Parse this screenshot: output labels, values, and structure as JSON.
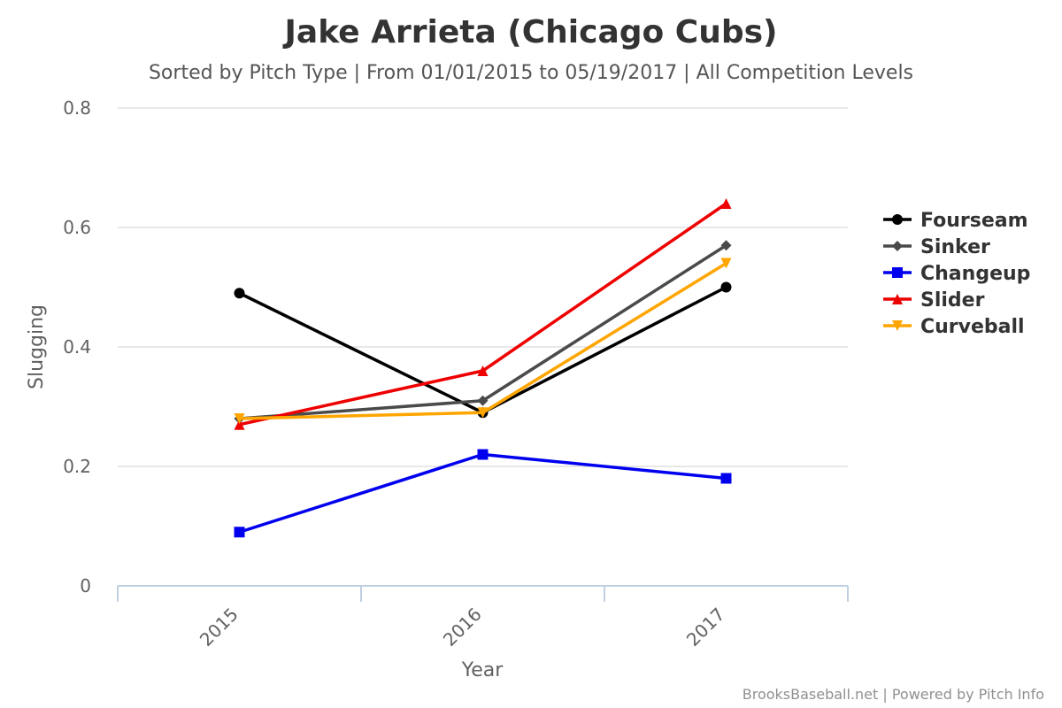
{
  "chart_data": {
    "type": "line",
    "title": "Jake Arrieta (Chicago Cubs)",
    "subtitle": "Sorted by Pitch Type | From 01/01/2015 to 05/19/2017 | All Competition Levels",
    "xlabel": "Year",
    "ylabel": "Slugging",
    "categories": [
      "2015",
      "2016",
      "2017"
    ],
    "ylim": [
      0,
      0.8
    ],
    "yticks": [
      "0",
      "0.2",
      "0.4",
      "0.6",
      "0.8"
    ],
    "grid": true,
    "legend_position": "right",
    "series": [
      {
        "name": "Fourseam",
        "color": "#000000",
        "marker": "circle",
        "values": [
          0.49,
          0.29,
          0.5
        ]
      },
      {
        "name": "Sinker",
        "color": "#4a4a4a",
        "marker": "diamond",
        "values": [
          0.28,
          0.31,
          0.57
        ]
      },
      {
        "name": "Changeup",
        "color": "#0000ee",
        "marker": "square",
        "values": [
          0.09,
          0.22,
          0.18
        ]
      },
      {
        "name": "Slider",
        "color": "#ee0000",
        "marker": "triangle",
        "values": [
          0.27,
          0.36,
          0.64
        ]
      },
      {
        "name": "Curveball",
        "color": "#ffa500",
        "marker": "triangle-down",
        "values": [
          0.28,
          0.29,
          0.54
        ]
      }
    ],
    "credit": "BrooksBaseball.net | Powered by Pitch Info"
  }
}
